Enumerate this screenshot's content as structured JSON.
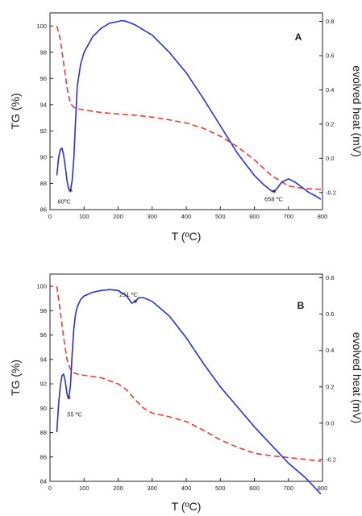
{
  "chart_data": [
    {
      "type": "line",
      "panel_label": "A",
      "xlabel": "T (ºC)",
      "ylabel_left": "TG (%)",
      "ylabel_right": "evolved heat (mV)",
      "xlim": [
        0,
        800
      ],
      "ylim_left": [
        86,
        101
      ],
      "ylim_right": [
        -0.3,
        0.85
      ],
      "x_ticks": [
        0,
        100,
        200,
        300,
        400,
        500,
        600,
        700,
        800
      ],
      "y_ticks_left": [
        86,
        88,
        90,
        92,
        94,
        96,
        98,
        100
      ],
      "y_ticks_right": [
        -0.2,
        0.0,
        0.2,
        0.4,
        0.6,
        0.8
      ],
      "x_tick_labels": [
        "0",
        "100",
        "200",
        "300",
        "400",
        "500",
        "600",
        "700",
        "800"
      ],
      "y_tick_labels_left": [
        "86",
        "88",
        "90",
        "92",
        "94",
        "96",
        "98",
        "100"
      ],
      "y_tick_labels_right": [
        "-0.2",
        "0.0",
        "0.2",
        "0.4",
        "0.6",
        "0.8"
      ],
      "grid": false,
      "series": [
        {
          "axis": "left",
          "color": "#e83a3a",
          "dash": "dashed",
          "x": [
            20,
            30,
            40,
            50,
            60,
            70,
            80,
            100,
            150,
            200,
            250,
            300,
            350,
            400,
            450,
            500,
            550,
            600,
            650,
            700,
            750,
            795
          ],
          "y": [
            100.0,
            99.0,
            97.2,
            95.3,
            94.1,
            93.8,
            93.7,
            93.6,
            93.4,
            93.3,
            93.2,
            93.05,
            92.85,
            92.6,
            92.2,
            91.6,
            90.8,
            89.8,
            88.6,
            87.8,
            87.6,
            87.55
          ]
        },
        {
          "axis": "right",
          "color": "#2a2fd6",
          "dash": "solid",
          "x": [
            20,
            25,
            30,
            35,
            40,
            45,
            50,
            55,
            60,
            65,
            70,
            75,
            80,
            90,
            100,
            125,
            150,
            175,
            200,
            210,
            225,
            250,
            300,
            350,
            400,
            450,
            500,
            550,
            600,
            625,
            650,
            658,
            665,
            680,
            700,
            720,
            740,
            760,
            780,
            795
          ],
          "y": [
            -0.1,
            0.0,
            0.05,
            0.06,
            0.02,
            -0.05,
            -0.13,
            -0.18,
            -0.19,
            -0.13,
            0.0,
            0.22,
            0.42,
            0.55,
            0.62,
            0.71,
            0.76,
            0.79,
            0.8,
            0.805,
            0.8,
            0.78,
            0.72,
            0.62,
            0.5,
            0.35,
            0.19,
            0.03,
            -0.1,
            -0.15,
            -0.19,
            -0.195,
            -0.18,
            -0.14,
            -0.12,
            -0.14,
            -0.17,
            -0.2,
            -0.22,
            -0.24
          ]
        }
      ],
      "annotations": [
        {
          "text": "60ºC",
          "x": 60,
          "y": -0.19,
          "axis": "right"
        },
        {
          "text": "658 ºC",
          "x": 658,
          "y": -0.195,
          "axis": "right"
        }
      ]
    },
    {
      "type": "line",
      "panel_label": "B",
      "xlabel": "T (ºC)",
      "ylabel_left": "TG (%)",
      "ylabel_right": "evolved heat (mV)",
      "xlim": [
        0,
        800
      ],
      "ylim_left": [
        84,
        101
      ],
      "ylim_right": [
        -0.32,
        0.82
      ],
      "x_ticks": [
        0,
        100,
        200,
        300,
        400,
        500,
        600,
        700,
        800
      ],
      "y_ticks_left": [
        84,
        86,
        88,
        90,
        92,
        94,
        96,
        98,
        100
      ],
      "y_ticks_right": [
        -0.2,
        0.0,
        0.2,
        0.4,
        0.6,
        0.8
      ],
      "x_tick_labels": [
        "0",
        "100",
        "200",
        "300",
        "400",
        "500",
        "600",
        "700",
        "800"
      ],
      "y_tick_labels_left": [
        "84",
        "86",
        "88",
        "90",
        "92",
        "94",
        "96",
        "98",
        "100"
      ],
      "y_tick_labels_right": [
        "-0.2",
        "0.0",
        "0.2",
        "0.4",
        "0.6",
        "0.8"
      ],
      "grid": false,
      "series": [
        {
          "axis": "left",
          "color": "#e83a3a",
          "dash": "dashed",
          "x": [
            20,
            30,
            40,
            50,
            60,
            70,
            80,
            100,
            150,
            200,
            225,
            250,
            275,
            300,
            350,
            400,
            450,
            500,
            550,
            600,
            650,
            700,
            750,
            795
          ],
          "y": [
            100.0,
            98.0,
            95.8,
            94.0,
            93.2,
            92.9,
            92.8,
            92.7,
            92.5,
            92.0,
            91.5,
            90.7,
            90.0,
            89.6,
            89.3,
            88.9,
            88.2,
            87.4,
            86.8,
            86.3,
            86.1,
            85.95,
            85.8,
            85.65
          ]
        },
        {
          "axis": "right",
          "color": "#2a2fd6",
          "dash": "solid",
          "x": [
            20,
            25,
            30,
            35,
            40,
            45,
            50,
            55,
            60,
            65,
            70,
            75,
            80,
            90,
            100,
            125,
            150,
            175,
            200,
            225,
            240,
            251,
            260,
            275,
            300,
            350,
            400,
            450,
            500,
            550,
            600,
            650,
            700,
            750,
            795
          ],
          "y": [
            -0.05,
            0.1,
            0.2,
            0.26,
            0.27,
            0.23,
            0.16,
            0.14,
            0.2,
            0.38,
            0.52,
            0.6,
            0.64,
            0.68,
            0.7,
            0.72,
            0.73,
            0.735,
            0.73,
            0.7,
            0.66,
            0.67,
            0.69,
            0.69,
            0.67,
            0.59,
            0.47,
            0.33,
            0.2,
            0.09,
            -0.02,
            -0.12,
            -0.22,
            -0.3,
            -0.39
          ]
        }
      ],
      "annotations": [
        {
          "text": "55 ºC",
          "x": 55,
          "y": 0.14,
          "axis": "right"
        },
        {
          "text": "251 ºC",
          "x": 251,
          "y": 0.67,
          "axis": "right"
        }
      ]
    }
  ]
}
